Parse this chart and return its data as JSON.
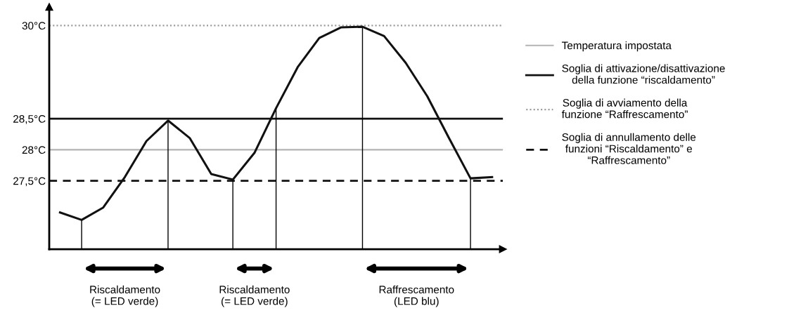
{
  "chart_data": {
    "type": "line",
    "categories": [
      null,
      null,
      null,
      null,
      null,
      null,
      null,
      null,
      null,
      null,
      null,
      null,
      null,
      null,
      null,
      null,
      null,
      null,
      null,
      null,
      null
    ],
    "series": [
      {
        "color": "#111111",
        "values": [
          26.99,
          26.87,
          27.07,
          27.56,
          28.14,
          28.47,
          28.19,
          27.61,
          27.52,
          27.95,
          28.67,
          29.33,
          29.8,
          29.97,
          29.98,
          29.83,
          29.4,
          28.86,
          28.19,
          27.54,
          27.56
        ]
      }
    ],
    "ylim": [
      26.4,
      30.3
    ],
    "yticks": [
      {
        "value": 27.5,
        "label": "27,5°C"
      },
      {
        "value": 28,
        "label": "28°C"
      },
      {
        "value": 28.5,
        "label": "28,5°C"
      },
      {
        "value": 30,
        "label": "30°C"
      }
    ],
    "ref_lines": [
      {
        "axis": "y",
        "value": 28,
        "label": "Temperatura impostata",
        "color": "#b3b3b3",
        "line_style": "solid"
      },
      {
        "axis": "y",
        "value": 28.5,
        "label": "Soglia di attivazione/disattivazione\ndella funzione “riscaldamento”",
        "color": "#111111",
        "line_style": "solid"
      },
      {
        "axis": "y",
        "value": 30,
        "label": "Soglia di avviamento della\nfunzione “Raffrescamento”",
        "color": "#9a9a9a",
        "line_style": "dotted"
      },
      {
        "axis": "y",
        "value": 27.5,
        "label": "Soglia di annullamento delle\nfunzioni “Riscaldamento” e\n“Raffrescamento”",
        "color": "#111111",
        "line_style": "dashed"
      }
    ],
    "annotations": [
      "Riscaldamento\n(= LED verde)",
      "Riscaldamento\n(= LED verde)",
      "Raffrescamento\n(LED blu)"
    ],
    "legend": "right",
    "grid": false,
    "marker": "none",
    "line_style": "solid"
  }
}
